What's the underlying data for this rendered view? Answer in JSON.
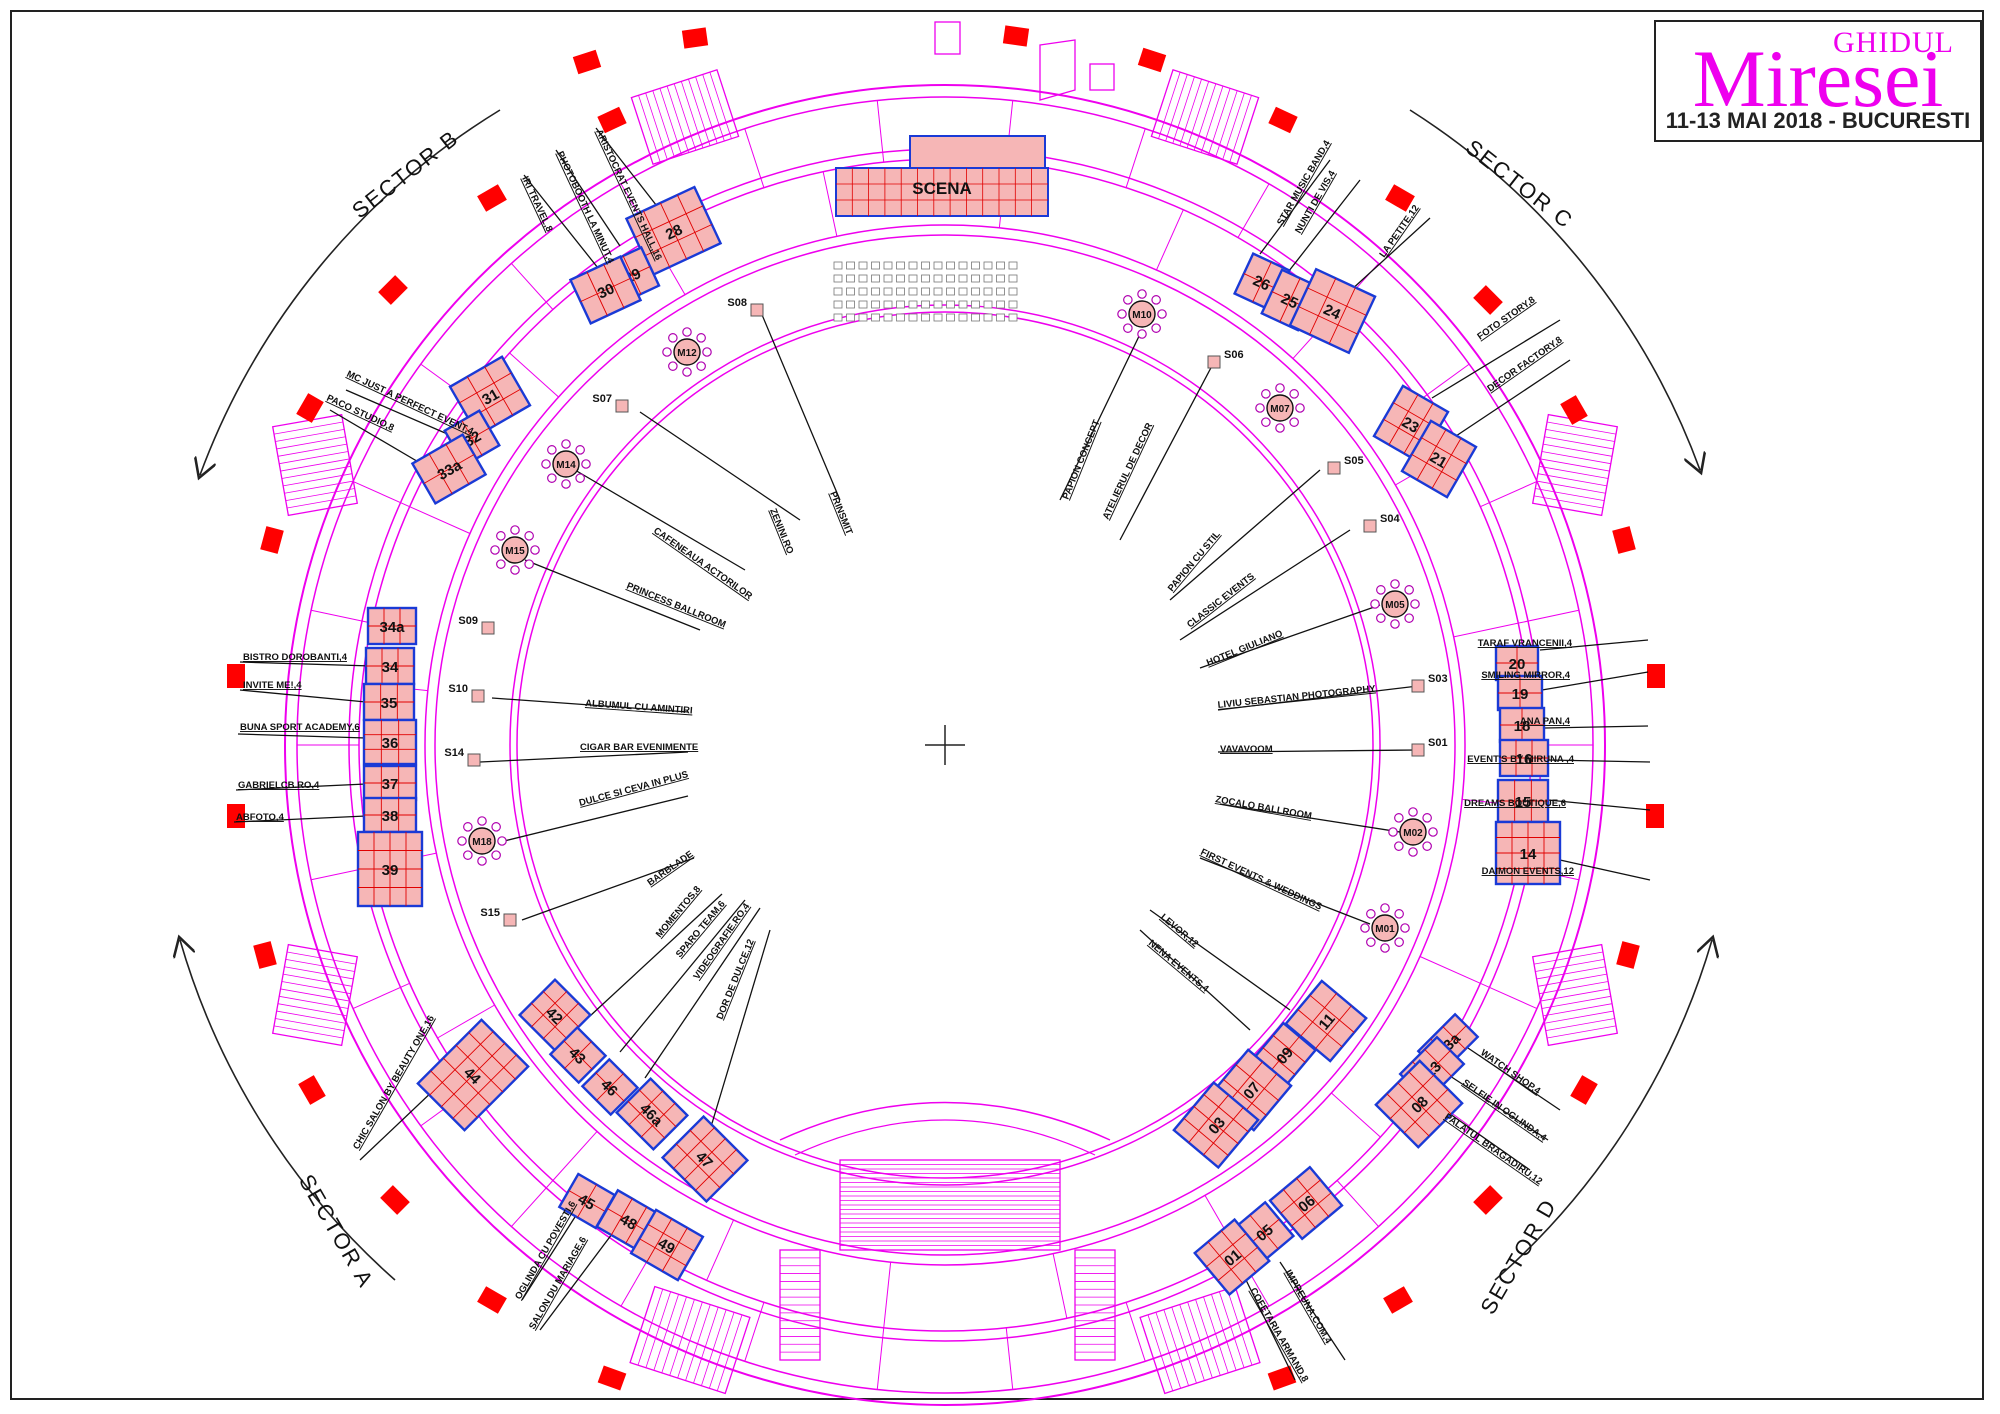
{
  "brand": {
    "title_small": "GHIDUL",
    "title_large": "Miresei",
    "date_place": "11-13 MAI 2018 - BUCURESTI"
  },
  "sectors": [
    "SECTOR A",
    "SECTOR B",
    "SECTOR C",
    "SECTOR D"
  ],
  "stage_label": "SCENA",
  "colors": {
    "walls": "#ee00ee",
    "booth_fill": "#f6b6b6",
    "booth_border": "#1a3ad6",
    "booth_grid": "#e00000",
    "pillar": "#ff0000",
    "leader": "#111111"
  },
  "booths": [
    "01",
    "03",
    "05",
    "06",
    "07",
    "08",
    "09",
    "11",
    "13",
    "13a",
    "14",
    "15",
    "16",
    "18",
    "19",
    "20",
    "21",
    "23",
    "24",
    "25",
    "26",
    "28",
    "29",
    "30",
    "31",
    "32",
    "33a",
    "34",
    "34a",
    "35",
    "36",
    "37",
    "38",
    "39",
    "42",
    "43",
    "44",
    "45",
    "46",
    "46a",
    "47",
    "48",
    "49"
  ],
  "stands_round": [
    "M01",
    "M02",
    "M05",
    "M07",
    "M10",
    "M12",
    "M14",
    "M15",
    "M18"
  ],
  "stands_square": [
    "S01",
    "S03",
    "S04",
    "S05",
    "S06",
    "S07",
    "S08",
    "S09",
    "S10",
    "S14",
    "S15"
  ],
  "exhibitors": [
    "TARAF VRANCENII,4",
    "SMILING MIRROR,4",
    "ANA PAN,4",
    "EVENT'S BY MIRUNA ,4",
    "DREAMS BOUTIQUE,6",
    "DAIMON EVENTS,12",
    "WATCH SHOP,4",
    "SELFIE IN OGLINDA,4",
    "PALATUL BRAGADIRU,12",
    "IMPREUNA.COM,4",
    "COFETARIA ARMAND,8",
    "FOTO STORY,8",
    "DECOR FACTORY,8",
    "STAR MUSIC BAND,4",
    "NUNTI DE VIS,4",
    "LA PETITE,12",
    "PHOTOBOOTH LA MINUT,4",
    "ARISTOCRAT EVENTS HALL,16",
    "IRI TRAVEL,8",
    "MC JUST A PERFECT EVENT,4",
    "PACO STUDIO,8",
    "BISTRO DOROBANTI,4",
    "INVITE ME!,4",
    "BUNA SPORT ACADEMY,6",
    "GABRIELCB.RO,4",
    "ABFOTO,4",
    "CHIC SALON BY BEAUTY ONE,16",
    "OGLINDA CU POVESTI,6",
    "SALON DU MARIAGE,6",
    "MOMENTOS,8",
    "SPARO TEAM,6",
    "VIDEOGRAFIE.RO,4",
    "DOR DE DULCE,12",
    "PRINSMIT",
    "ZENINI.RO",
    "CAFENEAUA ACTORILOR",
    "PRINCESS BALLROOM",
    "ALBUMUL CU AMINTIRI",
    "CIGAR BAR EVENIMENTE",
    "DULCE SI CEVA IN PLUS",
    "BARBLADE",
    "PAPION CONCEPT",
    "ATELIERUL DE DECOR",
    "PAPION CU STIL",
    "CLASSIC EVENTS",
    "HOTEL GIULIANO",
    "LIVIU SEBASTIAN PHOTOGRAPHY",
    "VAVAVOOM",
    "ZOCALO BALLROOM",
    "FIRST EVENTS & WEDDINGS",
    "LEVOR,12",
    "NENA EVENTS,4"
  ]
}
